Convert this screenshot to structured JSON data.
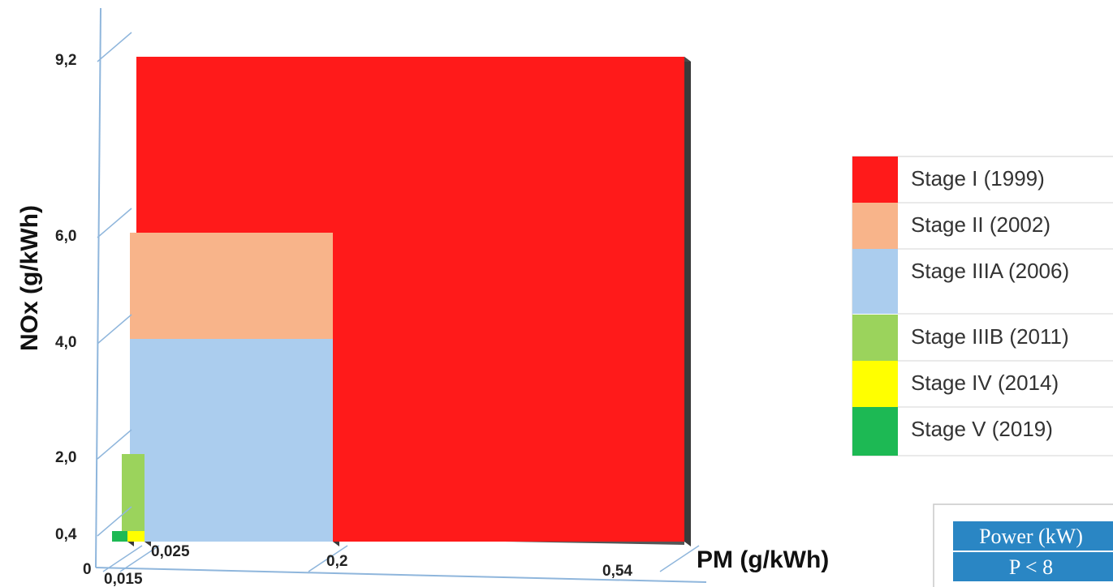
{
  "chart_data": {
    "type": "bar",
    "title": "",
    "xlabel": "PM (g/kWh)",
    "ylabel": "NOx  (g/kWh)",
    "x_ticks": [
      "0",
      "0,015",
      "0,025",
      "0,2",
      "0,54"
    ],
    "y_ticks": [
      "0,4",
      "2,0",
      "4,0",
      "6,0",
      "9,2"
    ],
    "series": [
      {
        "name": "Stage I (1999)",
        "pm": 0.54,
        "nox": 9.2,
        "color": "#ff1a1a"
      },
      {
        "name": "Stage II (2002)",
        "pm": 0.2,
        "nox": 6.0,
        "color": "#f8b48a"
      },
      {
        "name": "Stage IIIA (2006)",
        "pm": 0.2,
        "nox": 4.0,
        "color": "#abcdee"
      },
      {
        "name": "Stage IIIB (2011)",
        "pm": 0.025,
        "nox": 2.0,
        "color": "#9bd35c"
      },
      {
        "name": "Stage IV (2014)",
        "pm": 0.025,
        "nox": 0.4,
        "color": "#ffff00"
      },
      {
        "name": "Stage V (2019)",
        "pm": 0.015,
        "nox": 0.4,
        "color": "#1db954"
      }
    ],
    "legend_position": "right"
  },
  "power_table": {
    "header": "Power (kW)",
    "row": "P < 8"
  }
}
